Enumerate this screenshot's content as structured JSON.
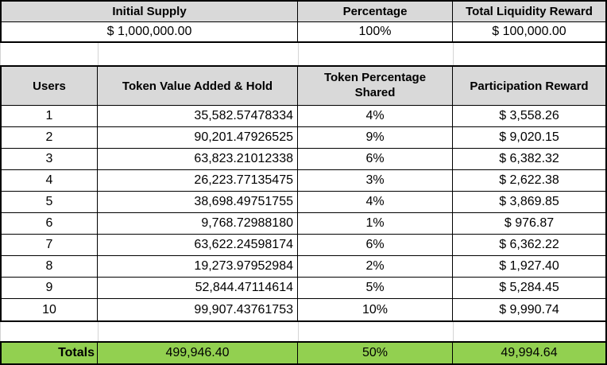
{
  "colors": {
    "header_fill": "#d9d9d9",
    "totals_fill": "#92d050",
    "border": "#000000",
    "gridline": "#d4d4d4"
  },
  "summary_table": {
    "headers": [
      "Initial Supply",
      "Percentage",
      "Total Liquidity Reward"
    ],
    "values": [
      "$ 1,000,000.00",
      "100%",
      "$ 100,000.00"
    ]
  },
  "participation_table": {
    "headers": {
      "users": "Users",
      "token_value": "Token Value Added & Hold",
      "pct": "Token Percentage Shared",
      "reward": "Participation Reward"
    },
    "rows": [
      {
        "user": "1",
        "token_value": "35,582.57478334",
        "pct": "4%",
        "reward": "$ 3,558.26"
      },
      {
        "user": "2",
        "token_value": "90,201.47926525",
        "pct": "9%",
        "reward": "$ 9,020.15"
      },
      {
        "user": "3",
        "token_value": "63,823.21012338",
        "pct": "6%",
        "reward": "$ 6,382.32"
      },
      {
        "user": "4",
        "token_value": "26,223.77135475",
        "pct": "3%",
        "reward": "$ 2,622.38"
      },
      {
        "user": "5",
        "token_value": "38,698.49751755",
        "pct": "4%",
        "reward": "$ 3,869.85"
      },
      {
        "user": "6",
        "token_value": "9,768.72988180",
        "pct": "1%",
        "reward": "$ 976.87"
      },
      {
        "user": "7",
        "token_value": "63,622.24598174",
        "pct": "6%",
        "reward": "$ 6,362.22"
      },
      {
        "user": "8",
        "token_value": "19,273.97952984",
        "pct": "2%",
        "reward": "$ 1,927.40"
      },
      {
        "user": "9",
        "token_value": "52,844.47114614",
        "pct": "5%",
        "reward": "$ 5,284.45"
      },
      {
        "user": "10",
        "token_value": "99,907.43761753",
        "pct": "10%",
        "reward": "$ 9,990.74"
      }
    ],
    "totals": {
      "label": "Totals",
      "token_value": "499,946.40",
      "pct": "50%",
      "reward": "49,994.64"
    }
  }
}
